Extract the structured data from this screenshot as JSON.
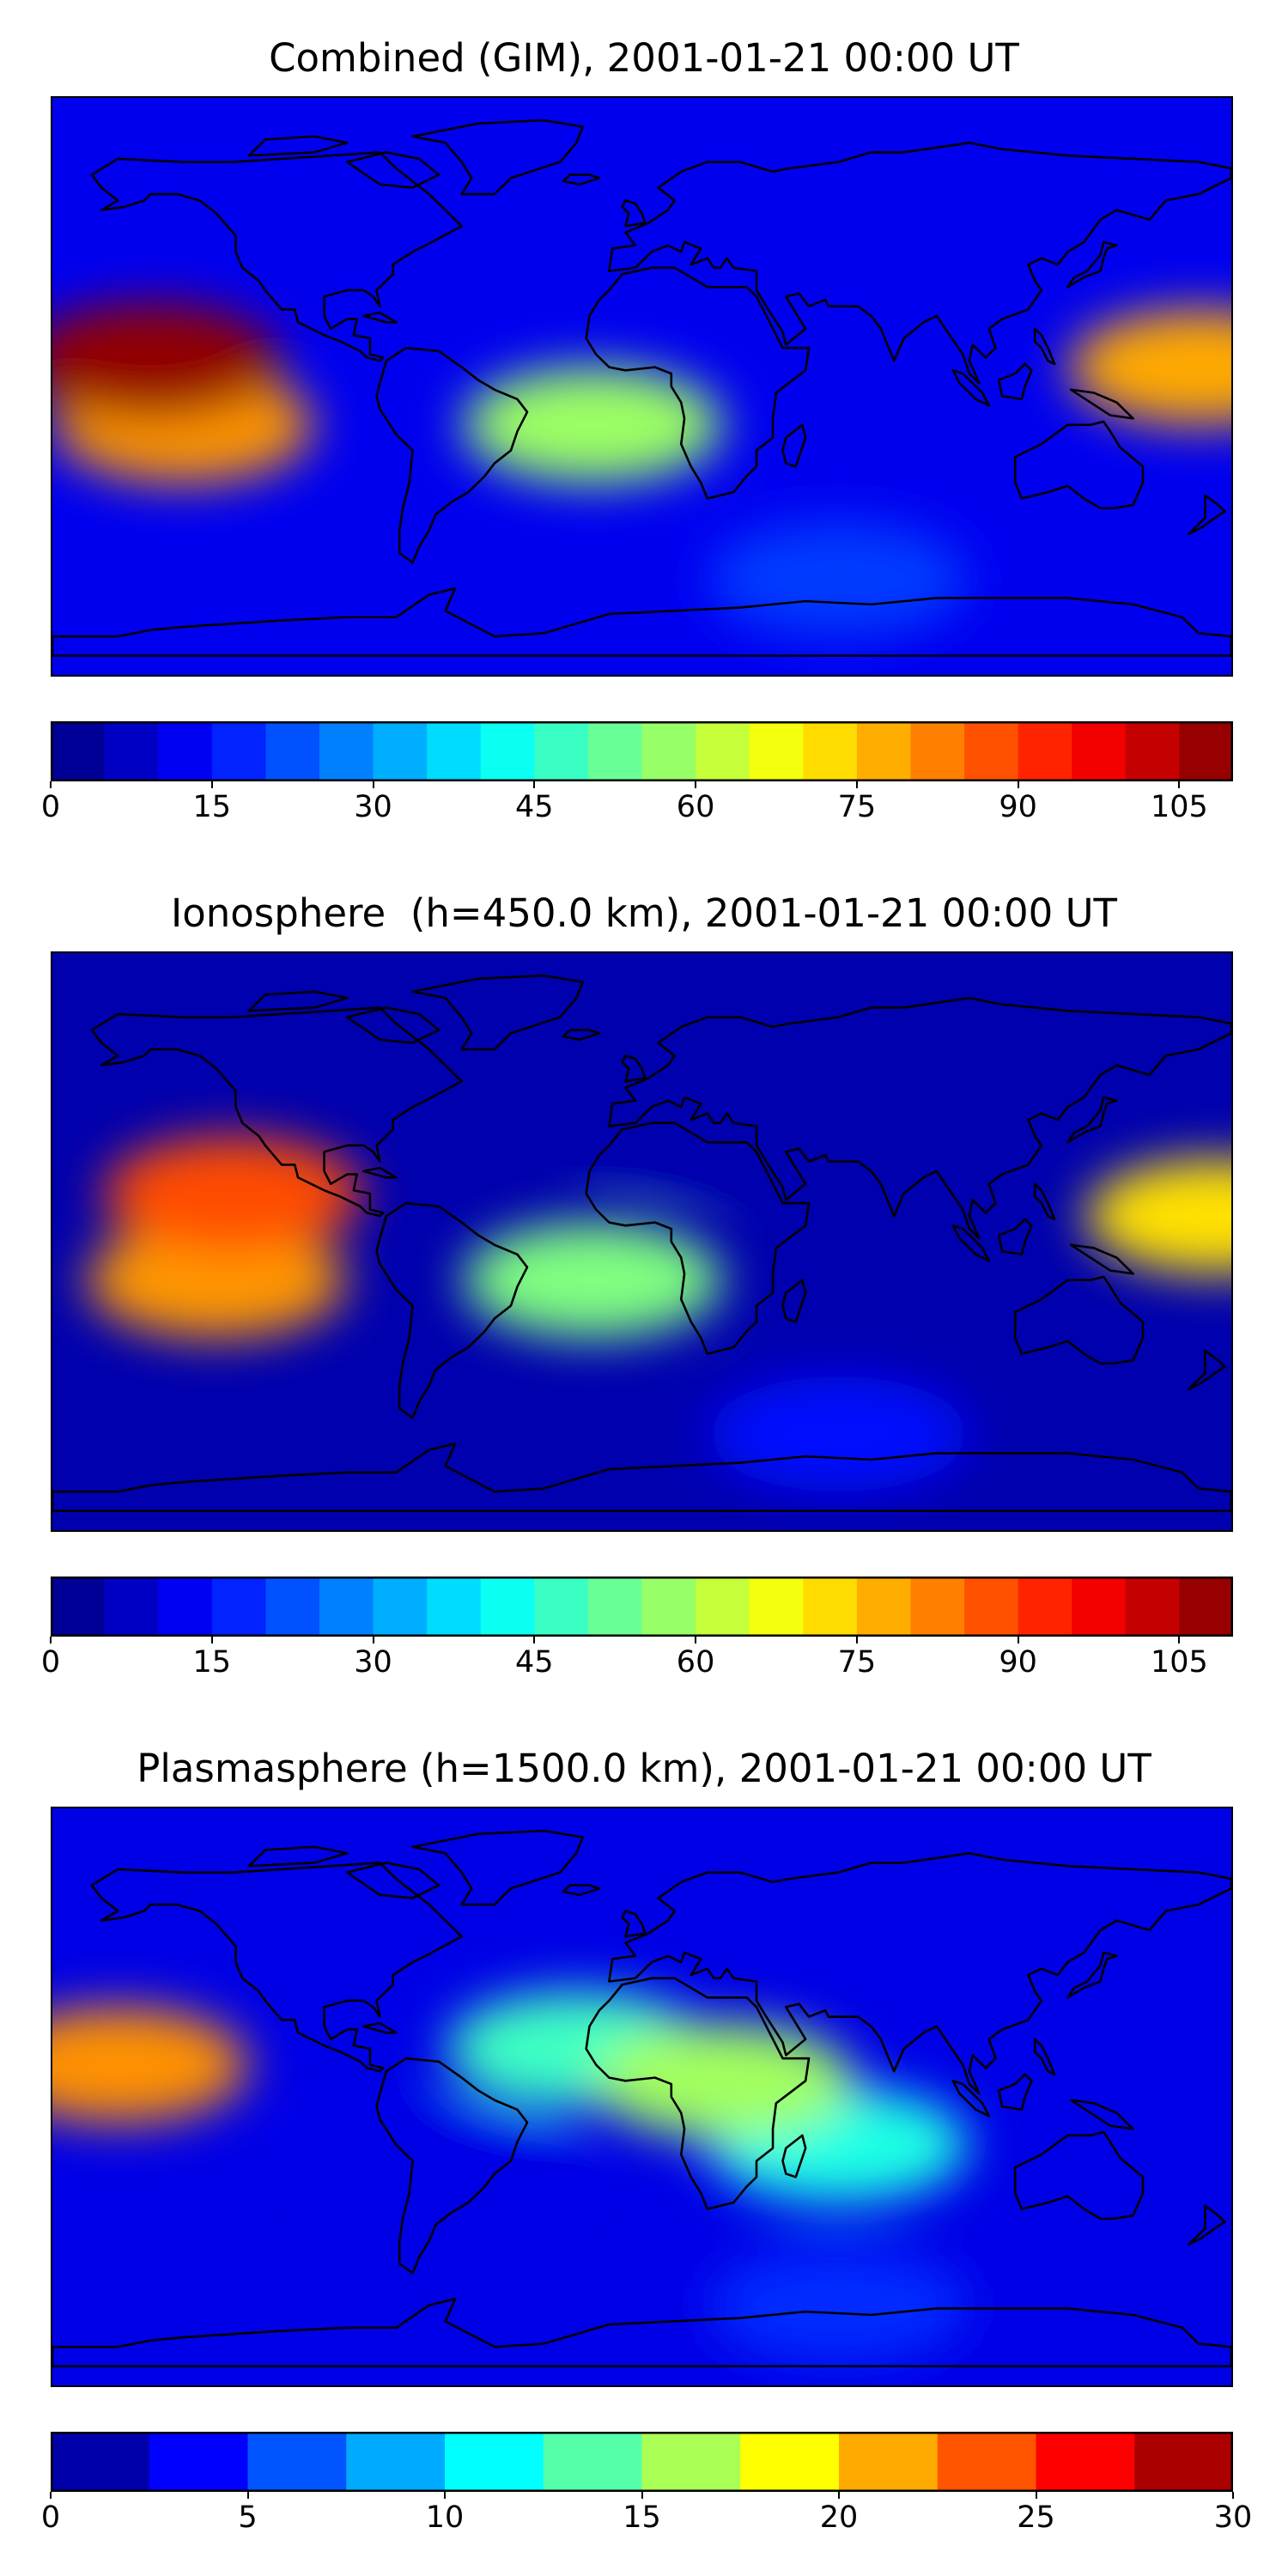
{
  "panels": [
    {
      "title": "Combined (GIM), 2001-01-21 00:00 UT",
      "colorbar": {
        "colormap": "jet",
        "vmin": 0,
        "vmax": 110,
        "levels": 22,
        "ticks": [
          "0",
          "15",
          "30",
          "45",
          "60",
          "75",
          "90",
          "105"
        ],
        "tick_values": [
          0,
          15,
          30,
          45,
          60,
          75,
          90,
          105
        ]
      },
      "field_features": [
        {
          "name": "Pacific equatorial maximum",
          "lon": -150,
          "lat": 8,
          "value": 108
        },
        {
          "name": "Pacific southern crest",
          "lon": -140,
          "lat": -12,
          "value": 80
        },
        {
          "name": "Western Pacific crest",
          "lon": 170,
          "lat": 6,
          "value": 78
        },
        {
          "name": "South Atlantic crest",
          "lon": -15,
          "lat": -12,
          "value": 58
        },
        {
          "name": "Northern polar region",
          "lon": 0,
          "lat": 75,
          "value": 12
        },
        {
          "name": "Southern ocean",
          "lon": 60,
          "lat": -60,
          "value": 20
        }
      ]
    },
    {
      "title": "Ionosphere  (h=450.0 km), 2001-01-21 00:00 UT",
      "colorbar": {
        "colormap": "jet",
        "vmin": 0,
        "vmax": 110,
        "levels": 22,
        "ticks": [
          "0",
          "15",
          "30",
          "45",
          "60",
          "75",
          "90",
          "105"
        ],
        "tick_values": [
          0,
          15,
          30,
          45,
          60,
          75,
          90,
          105
        ]
      },
      "field_features": [
        {
          "name": "Pacific equatorial maximum",
          "lon": -125,
          "lat": 15,
          "value": 88
        },
        {
          "name": "Pacific southern crest",
          "lon": -130,
          "lat": -12,
          "value": 80
        },
        {
          "name": "Western Pacific crest",
          "lon": 175,
          "lat": 8,
          "value": 72
        },
        {
          "name": "South Atlantic crest",
          "lon": -15,
          "lat": -12,
          "value": 55
        },
        {
          "name": "Africa / Europe night side",
          "lon": 20,
          "lat": 35,
          "value": 5
        },
        {
          "name": "Southern ocean",
          "lon": 60,
          "lat": -60,
          "value": 15
        }
      ]
    },
    {
      "title": "Plasmasphere (h=1500.0 km), 2001-01-21 00:00 UT",
      "colorbar": {
        "colormap": "jet",
        "vmin": 0,
        "vmax": 30,
        "levels": 12,
        "ticks": [
          "0",
          "5",
          "10",
          "15",
          "20",
          "25",
          "30"
        ],
        "tick_values": [
          0,
          5,
          10,
          15,
          20,
          25,
          30
        ]
      },
      "field_features": [
        {
          "name": "Pacific maximum",
          "lon": -160,
          "lat": 10,
          "value": 22
        },
        {
          "name": "Africa crest",
          "lon": 25,
          "lat": 5,
          "value": 16
        },
        {
          "name": "Atlantic band",
          "lon": -20,
          "lat": 15,
          "value": 13
        },
        {
          "name": "Indian ocean band",
          "lon": 60,
          "lat": -15,
          "value": 12
        },
        {
          "name": "South America minimum",
          "lon": -60,
          "lat": -20,
          "value": 3
        },
        {
          "name": "Southern ocean",
          "lon": 60,
          "lat": -65,
          "value": 5
        }
      ]
    }
  ]
}
